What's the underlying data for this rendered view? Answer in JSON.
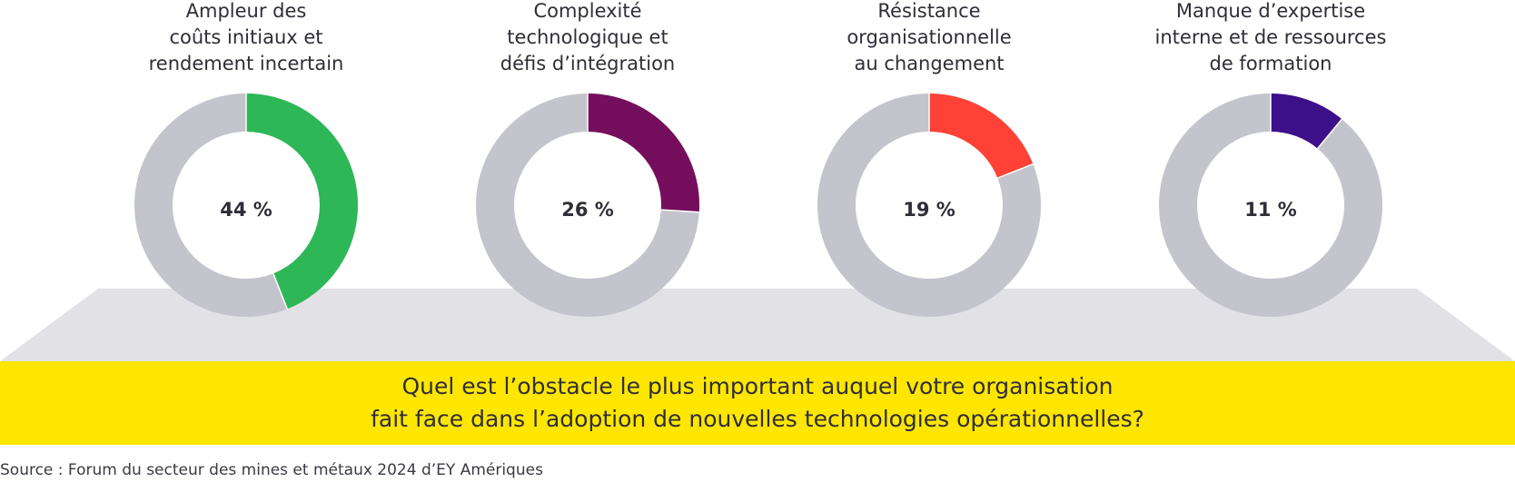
{
  "chart_data": {
    "type": "pie",
    "variant": "donut",
    "question": [
      "Quel est l’obstacle le plus important auquel votre organisation",
      "fait face dans l’adoption de nouvelles technologies opérationnelles?"
    ],
    "items": [
      {
        "title_lines": [
          "Ampleur des",
          "coûts initiaux et",
          "rendement incertain"
        ],
        "value": 44,
        "label": "44 %",
        "color": "#2db757"
      },
      {
        "title_lines": [
          "Complexité",
          "technologique et",
          "défis d’intégration"
        ],
        "value": 26,
        "label": "26 %",
        "color": "#750e5c"
      },
      {
        "title_lines": [
          "Résistance",
          "organisationnelle",
          "au changement"
        ],
        "value": 19,
        "label": "19 %",
        "color": "#ff4136"
      },
      {
        "title_lines": [
          "Manque d’expertise",
          "interne et de ressources",
          "de formation"
        ],
        "value": 11,
        "label": "11 %",
        "color": "#3d108a"
      }
    ],
    "remainder_color": "#c4c4cd",
    "max": 100
  },
  "source": "Source : Forum du secteur des mines et métaux 2024 d’EY Amériques",
  "colors": {
    "banner": "#ffe600",
    "platform": "#e1e1e6",
    "text": "#2e2e38"
  }
}
